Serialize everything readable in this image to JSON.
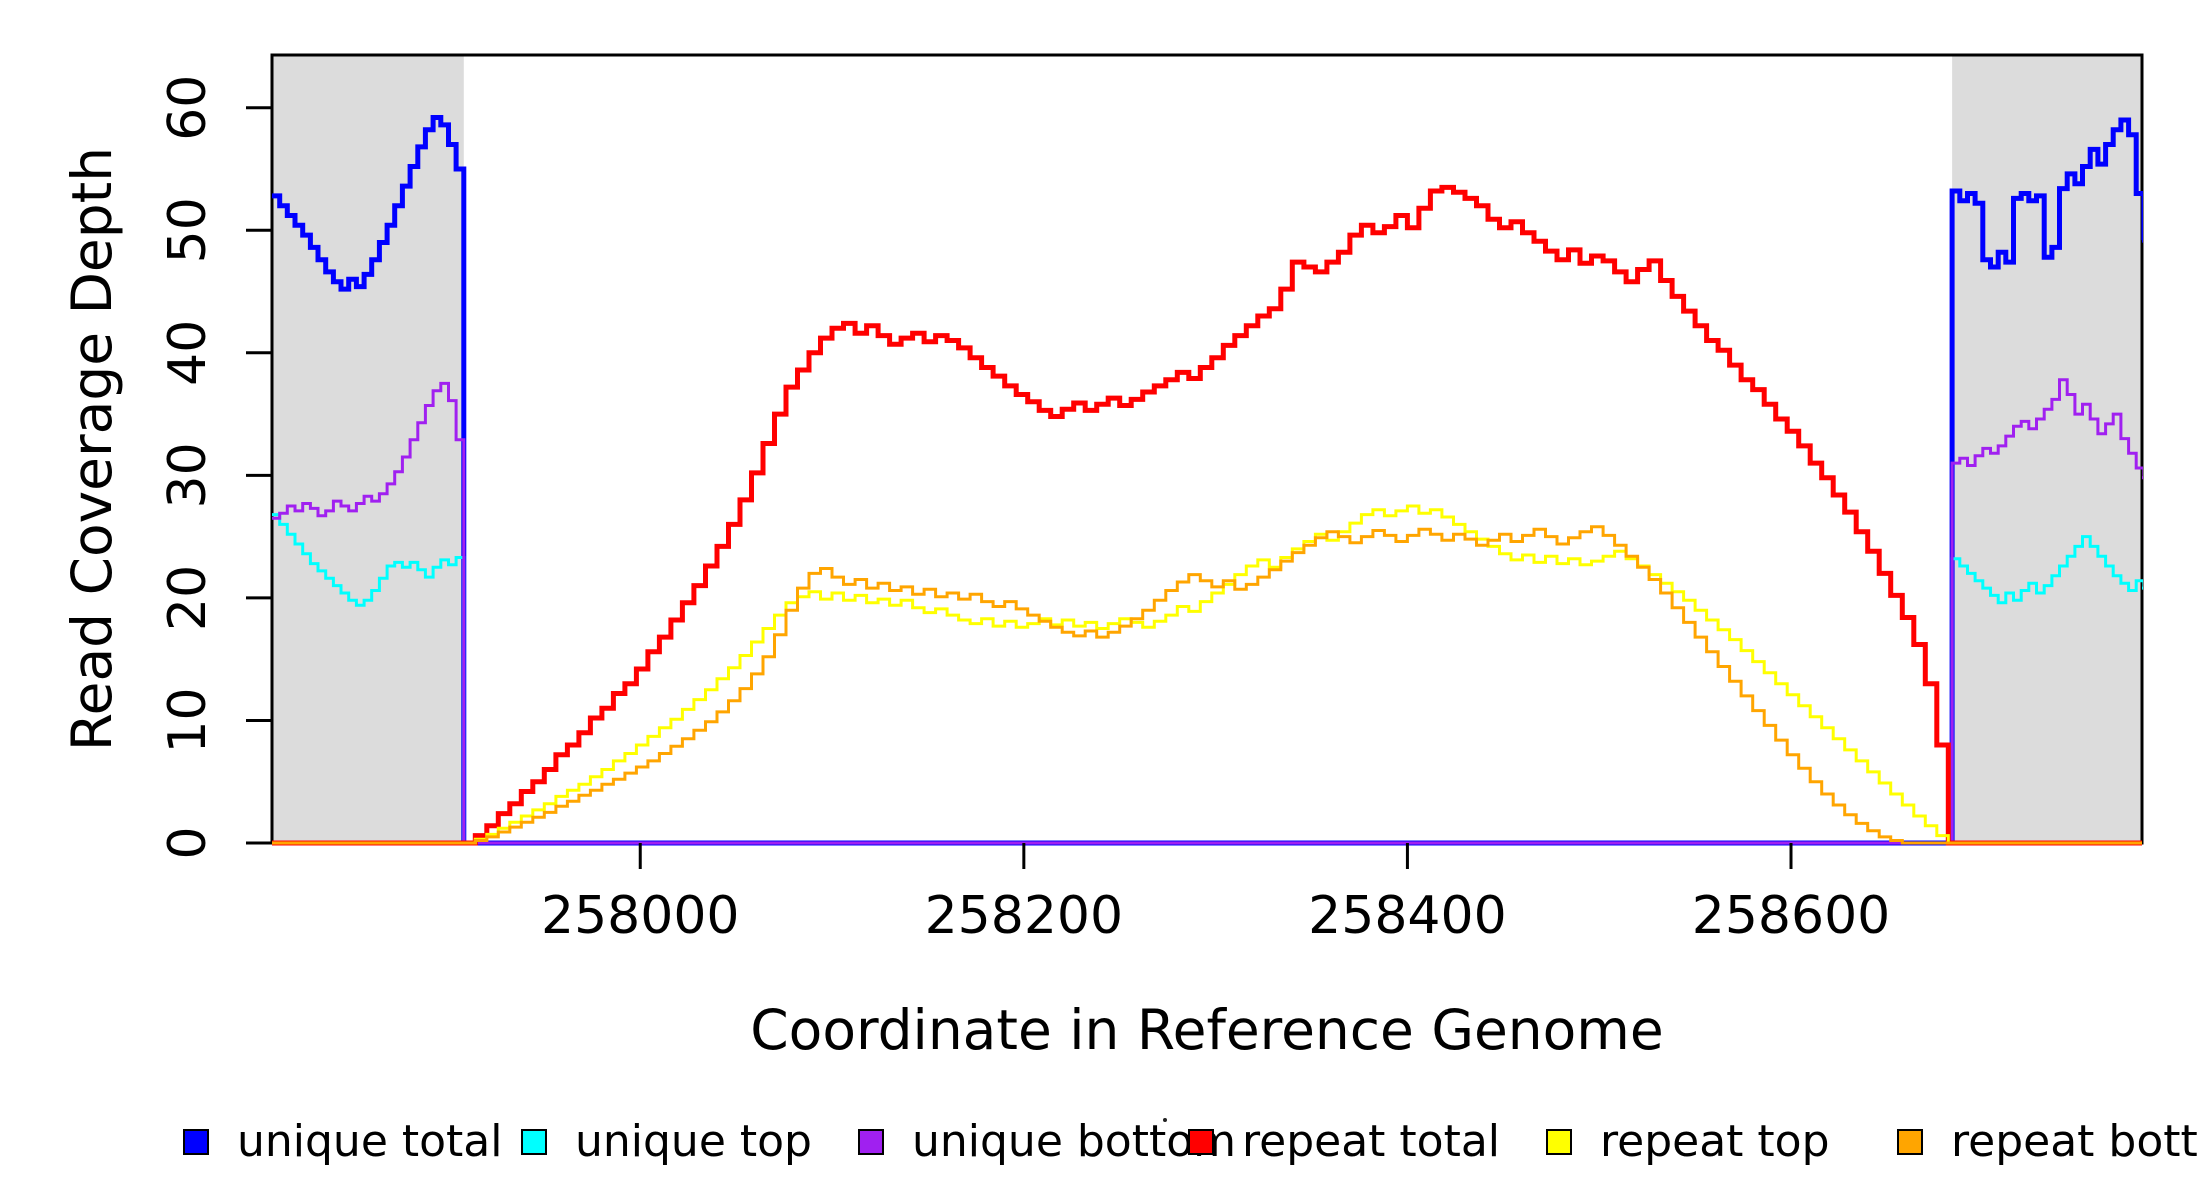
{
  "figure": {
    "background": "#ffffff",
    "x_axis_title": "Coordinate in Reference Genome",
    "y_axis_title": "Read Coverage Depth"
  },
  "legend": {
    "position": "bottom",
    "items": [
      {
        "label": "unique total",
        "color": "#0000FF"
      },
      {
        "label": "unique top",
        "color": "#00FFFF"
      },
      {
        "label": "unique bottom",
        "color": "#A020F0"
      },
      {
        "label": "repeat total",
        "color": "#FF0000"
      },
      {
        "label": "repeat top",
        "color": "#FFFF00"
      },
      {
        "label": "repeat bottom",
        "color": "#FFA500"
      }
    ]
  },
  "chart_data": {
    "type": "line",
    "subtype": "step-after-coverage-profile",
    "title": "",
    "xlabel": "Coordinate in Reference Genome",
    "ylabel": "Read Coverage Depth",
    "x_range": [
      257808,
      258783
    ],
    "y_range": [
      0,
      64.3
    ],
    "x_ticks": [
      258000,
      258200,
      258400,
      258600
    ],
    "x_tick_labels": [
      "258000",
      "258200",
      "258400",
      "258600"
    ],
    "y_ticks": [
      0,
      10,
      20,
      30,
      40,
      50,
      60
    ],
    "y_tick_labels": [
      "0",
      "10",
      "20",
      "30",
      "40",
      "50",
      "60"
    ],
    "grid": false,
    "shade_color": "#DCDCDC",
    "shaded_regions": [
      {
        "x0": 257808,
        "x1": 257908
      },
      {
        "x0": 258684,
        "x1": 258783
      }
    ],
    "axis_color": "#000000",
    "series": [
      {
        "name": "unique total",
        "color": "#0000FF",
        "width": 5,
        "segments": [
          {
            "x0": 257808,
            "dx": 4,
            "values": [
              52.8,
              52.0,
              51.2,
              50.4,
              49.6,
              48.6,
              47.6,
              46.6,
              45.8,
              45.2,
              46.0,
              45.4,
              46.4,
              47.6,
              49.0,
              50.4,
              52.0,
              53.6,
              55.2,
              56.8,
              58.2,
              59.2,
              58.6,
              57.0,
              55.0,
              53.2
            ]
          },
          {
            "x0": 257908,
            "dx": 1,
            "values": [
              0
            ]
          },
          {
            "x0": 258684,
            "dx": 4,
            "values": [
              53.2,
              52.4,
              53.0,
              52.2,
              47.6,
              47.0,
              48.2,
              47.4,
              52.6,
              53.0,
              52.4,
              52.8,
              47.8,
              48.6,
              53.4,
              54.6,
              53.8,
              55.2,
              56.6,
              55.4,
              57.0,
              58.2,
              59.0,
              57.8,
              53.0,
              49.2
            ]
          }
        ]
      },
      {
        "name": "unique top",
        "color": "#00FFFF",
        "width": 3,
        "segments": [
          {
            "x0": 257808,
            "dx": 4,
            "values": [
              26.8,
              26.0,
              25.2,
              24.4,
              23.6,
              22.8,
              22.2,
              21.6,
              21.0,
              20.4,
              19.8,
              19.4,
              19.8,
              20.6,
              21.6,
              22.6,
              22.9,
              22.5,
              22.9,
              22.3,
              21.7,
              22.5,
              23.1,
              22.7,
              23.3,
              22.7
            ]
          },
          {
            "x0": 257908,
            "dx": 1,
            "values": [
              0
            ]
          },
          {
            "x0": 258684,
            "dx": 4,
            "values": [
              23.2,
              22.6,
              22.0,
              21.4,
              20.8,
              20.2,
              19.6,
              20.4,
              19.8,
              20.6,
              21.2,
              20.4,
              21.0,
              21.8,
              22.6,
              23.4,
              24.2,
              25.0,
              24.2,
              23.4,
              22.6,
              21.8,
              21.2,
              20.6,
              21.4,
              20.8
            ]
          }
        ]
      },
      {
        "name": "unique bottom",
        "color": "#A020F0",
        "width": 3,
        "segments": [
          {
            "x0": 257808,
            "dx": 4,
            "values": [
              26.5,
              26.9,
              27.5,
              27.1,
              27.7,
              27.3,
              26.7,
              27.1,
              27.9,
              27.5,
              27.1,
              27.7,
              28.3,
              27.9,
              28.5,
              29.3,
              30.3,
              31.5,
              32.9,
              34.3,
              35.7,
              36.9,
              37.5,
              36.1,
              32.9,
              29.7
            ]
          },
          {
            "x0": 257908,
            "dx": 1,
            "values": [
              0
            ]
          },
          {
            "x0": 258684,
            "dx": 4,
            "values": [
              31.0,
              31.4,
              30.8,
              31.6,
              32.2,
              31.8,
              32.4,
              33.2,
              34.0,
              34.4,
              33.8,
              34.6,
              35.4,
              36.2,
              37.8,
              36.6,
              35.0,
              35.8,
              34.6,
              33.4,
              34.2,
              35.0,
              33.0,
              31.8,
              30.6,
              29.8
            ]
          }
        ]
      },
      {
        "name": "repeat total",
        "color": "#FF0000",
        "width": 5,
        "segments": [
          {
            "x0": 257808,
            "dx": 1,
            "values": [
              0
            ]
          },
          {
            "x0": 257908,
            "dx": 6,
            "values": [
              0.0,
              0.6,
              1.4,
              2.4,
              3.2,
              4.2,
              5.0,
              6.0,
              7.2,
              8.0,
              9.0,
              10.2,
              11.0,
              12.2,
              13.0,
              14.2,
              15.6,
              16.8,
              18.2,
              19.6,
              21.0,
              22.6,
              24.2,
              26.0,
              28.0,
              30.2,
              32.6,
              35.0,
              37.2,
              38.6,
              40.0,
              41.2,
              42.0,
              42.4,
              41.6,
              42.2,
              41.4,
              40.7,
              41.2,
              41.6,
              40.9,
              41.4,
              41.0,
              40.4,
              39.6,
              38.8,
              38.1,
              37.3,
              36.6,
              36.0,
              35.3,
              34.8,
              35.4,
              35.9,
              35.3,
              35.8,
              36.3,
              35.7,
              36.2,
              36.8,
              37.3,
              37.8,
              38.4,
              37.9,
              38.8,
              39.6,
              40.6,
              41.4,
              42.2,
              43.0,
              43.6,
              45.2,
              47.4,
              47.0,
              46.6,
              47.4,
              48.2,
              49.6,
              50.4,
              49.8,
              50.3,
              51.2,
              50.2,
              51.8,
              53.2,
              53.5,
              53.1,
              52.6,
              52.0,
              50.9,
              50.2,
              50.7,
              49.8,
              49.1,
              48.3,
              47.6,
              48.4,
              47.3,
              47.9,
              47.5,
              46.6,
              45.8,
              46.8,
              47.5,
              45.9,
              44.6,
              43.4,
              42.2,
              41.0,
              40.2,
              39.0,
              37.8,
              37.0,
              35.8,
              34.6,
              33.6,
              32.4,
              31.0,
              29.8,
              28.4,
              27.0,
              25.4,
              23.8,
              22.0,
              20.2,
              18.4,
              16.2,
              13.0,
              8.0,
              0.0
            ]
          }
        ]
      },
      {
        "name": "repeat top",
        "color": "#FFFF00",
        "width": 3,
        "segments": [
          {
            "x0": 257808,
            "dx": 1,
            "values": [
              0
            ]
          },
          {
            "x0": 257908,
            "dx": 6,
            "values": [
              0.0,
              0.3,
              0.7,
              1.2,
              1.7,
              2.2,
              2.7,
              3.2,
              3.8,
              4.3,
              4.8,
              5.4,
              6.0,
              6.7,
              7.3,
              8.0,
              8.7,
              9.4,
              10.1,
              10.9,
              11.7,
              12.5,
              13.4,
              14.3,
              15.3,
              16.4,
              17.5,
              18.6,
              19.6,
              20.1,
              20.5,
              19.9,
              20.4,
              19.8,
              20.2,
              19.6,
              19.9,
              19.4,
              19.8,
              19.2,
              18.8,
              19.1,
              18.6,
              18.2,
              17.9,
              18.3,
              17.7,
              18.1,
              17.6,
              17.9,
              18.3,
              17.8,
              18.2,
              17.7,
              18.0,
              17.5,
              17.9,
              18.3,
              18.0,
              17.6,
              18.1,
              18.6,
              19.3,
              18.9,
              19.7,
              20.4,
              21.1,
              21.9,
              22.6,
              23.1,
              22.5,
              23.3,
              24.0,
              24.6,
              25.2,
              24.7,
              25.4,
              26.1,
              26.8,
              27.2,
              26.7,
              27.1,
              27.5,
              26.9,
              27.2,
              26.6,
              26.0,
              25.4,
              24.8,
              24.2,
              23.6,
              23.1,
              23.5,
              22.9,
              23.4,
              22.8,
              23.2,
              22.7,
              23.0,
              23.4,
              23.8,
              23.2,
              22.6,
              21.9,
              21.2,
              20.5,
              19.8,
              19.0,
              18.2,
              17.4,
              16.6,
              15.7,
              14.8,
              13.9,
              13.0,
              12.1,
              11.2,
              10.3,
              9.4,
              8.5,
              7.6,
              6.7,
              5.8,
              4.9,
              4.0,
              3.1,
              2.2,
              1.4,
              0.6,
              0.0
            ]
          }
        ]
      },
      {
        "name": "repeat bottom",
        "color": "#FFA500",
        "width": 3,
        "segments": [
          {
            "x0": 257808,
            "dx": 1,
            "values": [
              0
            ]
          },
          {
            "x0": 257908,
            "dx": 6,
            "values": [
              0.0,
              0.2,
              0.5,
              0.9,
              1.3,
              1.7,
              2.1,
              2.5,
              3.0,
              3.4,
              3.9,
              4.3,
              4.8,
              5.2,
              5.7,
              6.2,
              6.7,
              7.3,
              7.9,
              8.5,
              9.2,
              9.9,
              10.7,
              11.6,
              12.6,
              13.8,
              15.2,
              17.0,
              19.0,
              20.8,
              22.0,
              22.4,
              21.7,
              21.1,
              21.5,
              20.8,
              21.2,
              20.6,
              20.9,
              20.3,
              20.7,
              20.1,
              20.4,
              19.9,
              20.3,
              19.7,
              19.3,
              19.7,
              19.1,
              18.6,
              18.1,
              17.6,
              17.2,
              16.9,
              17.3,
              16.8,
              17.2,
              17.7,
              18.3,
              19.0,
              19.8,
              20.6,
              21.3,
              21.9,
              21.4,
              20.9,
              21.4,
              20.7,
              21.1,
              21.7,
              22.3,
              23.0,
              23.7,
              24.3,
              24.9,
              25.4,
              25.0,
              24.5,
              25.0,
              25.5,
              25.1,
              24.6,
              25.1,
              25.6,
              25.2,
              24.7,
              25.2,
              24.8,
              24.3,
              24.7,
              25.2,
              24.6,
              25.1,
              25.6,
              25.0,
              24.4,
              24.9,
              25.4,
              25.8,
              25.1,
              24.3,
              23.4,
              22.5,
              21.5,
              20.4,
              19.2,
              18.0,
              16.8,
              15.6,
              14.4,
              13.2,
              12.0,
              10.8,
              9.6,
              8.4,
              7.2,
              6.1,
              5.0,
              4.0,
              3.1,
              2.3,
              1.6,
              1.0,
              0.5,
              0.2,
              0.0,
              0.0,
              0.0,
              0.0,
              0.0
            ]
          }
        ]
      }
    ]
  }
}
